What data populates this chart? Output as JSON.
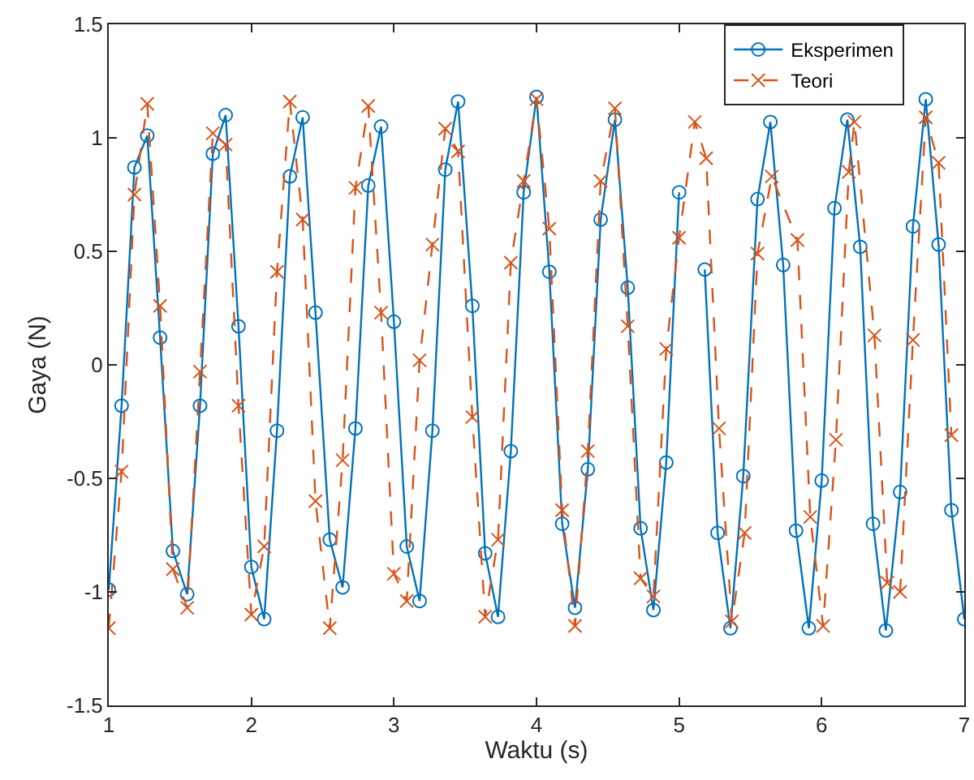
{
  "chart_data": {
    "type": "line",
    "xlabel": "Waktu (s)",
    "ylabel": "Gaya (N)",
    "xlim": [
      1,
      7
    ],
    "ylim": [
      -1.5,
      1.5
    ],
    "xticks": [
      1,
      2,
      3,
      4,
      5,
      6,
      7
    ],
    "yticks": [
      -1.5,
      -1,
      -0.5,
      0,
      0.5,
      1,
      1.5
    ],
    "grid": false,
    "legend": "top right",
    "series": [
      {
        "name": "Eksperimen",
        "color": "#0072bd",
        "marker": "circle",
        "line_style": "solid",
        "x": [
          1,
          1.09,
          1.18,
          1.27,
          1.36,
          1.45,
          1.55,
          1.64,
          1.73,
          1.82,
          1.91,
          2,
          2.09,
          2.18,
          2.27,
          2.36,
          2.45,
          2.55,
          2.64,
          2.73,
          2.82,
          2.91,
          3,
          3.09,
          3.18,
          3.27,
          3.36,
          3.45,
          3.55,
          3.64,
          3.73,
          3.82,
          3.91,
          4,
          4.09,
          4.18,
          4.27,
          4.36,
          4.45,
          4.55,
          4.64,
          4.73,
          4.82,
          4.91,
          5,
          5.09,
          5.18,
          5.27,
          5.36,
          5.45,
          5.55,
          5.64,
          5.73,
          5.82,
          5.91,
          6,
          6.09,
          6.18,
          6.27,
          6.36,
          6.45,
          6.55,
          6.64,
          6.73,
          6.82,
          6.91,
          7
        ],
        "values": [
          -0.99,
          -0.18,
          0.87,
          1.01,
          0.12,
          -0.82,
          -1.01,
          -0.18,
          0.93,
          1.1,
          0.17,
          -0.89,
          -1.12,
          -0.29,
          0.83,
          1.09,
          0.23,
          -0.77,
          -0.98,
          -0.28,
          0.79,
          1.05,
          0.19,
          -0.8,
          -1.04,
          -0.29,
          0.86,
          1.16,
          0.26,
          -0.83,
          -1.11,
          -0.38,
          0.76,
          1.18,
          0.41,
          -0.7,
          -1.07,
          -0.46,
          0.64,
          1.08,
          0.34,
          -0.72,
          -1.08,
          -0.43,
          0.76,
          null,
          0.42,
          -0.74,
          -1.16,
          -0.49,
          0.73,
          1.07,
          0.44,
          -0.73,
          -1.16,
          -0.51,
          0.69,
          1.08,
          0.52,
          -0.7,
          -1.17,
          -0.56,
          0.61,
          1.17,
          0.53,
          -0.64,
          -1.12
        ]
      },
      {
        "name": "Teori",
        "color": "#d95319",
        "marker": "cross",
        "line_style": "dashed",
        "x": [
          1,
          1.09,
          1.18,
          1.27,
          1.36,
          1.45,
          1.55,
          1.64,
          1.73,
          1.82,
          1.91,
          2,
          2.09,
          2.18,
          2.27,
          2.36,
          2.45,
          2.55,
          2.64,
          2.73,
          2.82,
          2.91,
          3,
          3.09,
          3.18,
          3.27,
          3.36,
          3.45,
          3.55,
          3.64,
          3.73,
          3.82,
          3.91,
          4,
          4.09,
          4.18,
          4.27,
          4.36,
          4.45,
          4.55,
          4.64,
          4.73,
          4.82,
          4.91,
          5,
          5.11,
          5.19,
          5.28,
          5.37,
          5.46,
          5.55,
          5.65,
          5.83,
          5.92,
          6.01,
          6.1,
          6.19,
          6.23,
          6.37,
          6.46,
          6.55,
          6.64,
          6.73,
          6.82,
          6.91
        ],
        "values": [
          -1.16,
          -0.47,
          0.75,
          1.15,
          0.26,
          -0.9,
          -1.07,
          -0.03,
          1.02,
          0.97,
          -0.18,
          -1.1,
          -0.8,
          0.41,
          1.16,
          0.64,
          -0.6,
          -1.16,
          -0.42,
          0.78,
          1.14,
          0.23,
          -0.92,
          -1.04,
          0.02,
          0.53,
          1.04,
          0.94,
          -0.23,
          -1.11,
          -0.77,
          0.45,
          0.81,
          1.17,
          0.6,
          -0.64,
          -1.15,
          -0.38,
          0.81,
          1.13,
          0.17,
          -0.94,
          -1.02,
          0.07,
          0.56,
          1.07,
          0.91,
          -0.28,
          -1.13,
          -0.74,
          0.49,
          0.83,
          0.55,
          -0.67,
          -1.15,
          -0.33,
          0.85,
          1.07,
          0.13,
          -0.96,
          -1,
          0.11,
          1.09,
          0.89,
          -0.31
        ]
      }
    ]
  }
}
